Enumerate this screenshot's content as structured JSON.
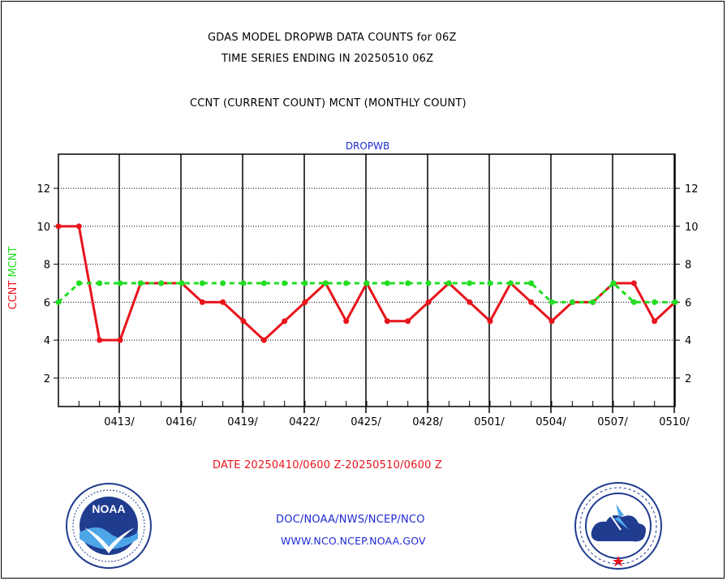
{
  "title_line1": "GDAS MODEL DROPWB DATA COUNTS for 06Z",
  "title_line2": "TIME SERIES ENDING IN 20250510 06Z",
  "subtitle": "CCNT (CURRENT COUNT) MCNT (MONTHLY COUNT)",
  "date_range": "DATE 20250410/0600 Z-20250510/0600 Z",
  "footer_line1": "DOC/NOAA/NWS/NCEP/NCO",
  "footer_line2": "WWW.NCO.NCEP.NOAA.GOV",
  "logos": {
    "left": {
      "name": "noaa-logo",
      "text": "NOAA"
    },
    "right": {
      "name": "nws-logo"
    }
  },
  "chart_data": {
    "type": "line",
    "title": "DROPWB",
    "ylabel_parts": [
      {
        "text": "CCNT",
        "color": "#e8141c"
      },
      {
        "text": "MCNT",
        "color": "#22dd22"
      }
    ],
    "ylim": [
      0.5,
      13.8
    ],
    "yticks": [
      2,
      4,
      6,
      8,
      10,
      12
    ],
    "ytick_labels": [
      "2",
      "4",
      "6",
      "8",
      "10",
      "12"
    ],
    "x": [
      0,
      1,
      2,
      3,
      4,
      5,
      6,
      7,
      8,
      9,
      10,
      11,
      12,
      13,
      14,
      15,
      16,
      17,
      18,
      19,
      20,
      21,
      22,
      23,
      24,
      25,
      26,
      27,
      28,
      29,
      30
    ],
    "xlim": [
      0,
      30
    ],
    "xticks_major": [
      3,
      6,
      9,
      12,
      15,
      18,
      21,
      24,
      27,
      30
    ],
    "xtick_labels": [
      "0413/",
      "0416/",
      "0419/",
      "0422/",
      "0425/",
      "0428/",
      "0501/",
      "0504/",
      "0507/",
      "0510/"
    ],
    "grid": true,
    "series": [
      {
        "name": "CCNT",
        "color": "#e8141c",
        "style": "solid",
        "values": [
          10,
          10,
          4,
          4,
          7,
          7,
          7,
          6,
          6,
          5,
          4,
          5,
          6,
          7,
          5,
          7,
          5,
          5,
          6,
          7,
          6,
          5,
          7,
          6,
          5,
          6,
          6,
          7,
          7,
          5,
          6
        ]
      },
      {
        "name": "MCNT",
        "color": "#22dd22",
        "style": "dashed",
        "values": [
          6,
          7,
          7,
          7,
          7,
          7,
          7,
          7,
          7,
          7,
          7,
          7,
          7,
          7,
          7,
          7,
          7,
          7,
          7,
          7,
          7,
          7,
          7,
          7,
          6,
          6,
          6,
          7,
          6,
          6,
          6
        ]
      }
    ]
  }
}
